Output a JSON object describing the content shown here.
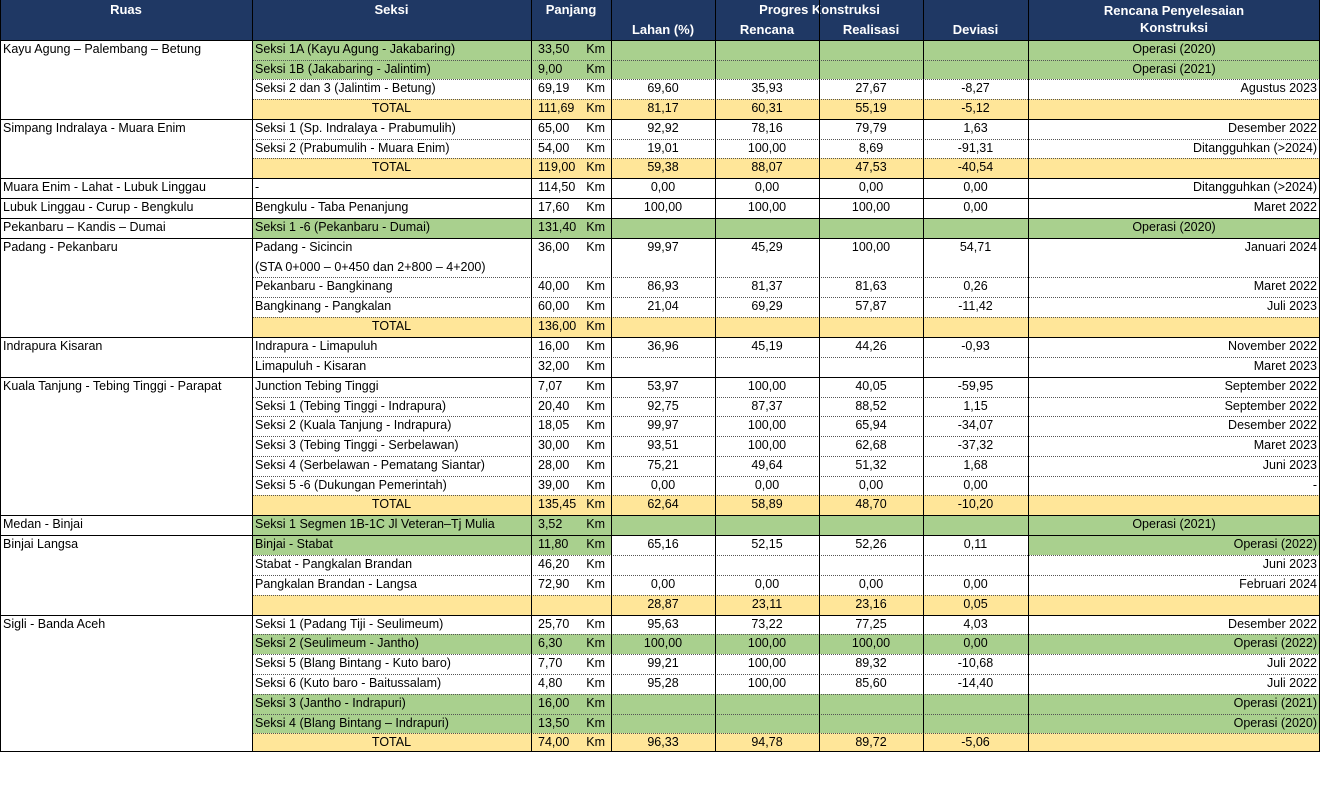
{
  "header": {
    "ruas": "Ruas",
    "seksi": "Seksi",
    "panjang": "Panjang",
    "progres": "Progres Konstruksi",
    "lahan": "Lahan (%)",
    "rencana": "Rencana",
    "realisasi": "Realisasi",
    "deviasi": "Deviasi",
    "penyelesaian_line1": "Rencana Penyelesaian",
    "penyelesaian_line2": "Konstruksi"
  },
  "unit": "Km",
  "groups": [
    {
      "ruas": "Kayu Agung – Palembang – Betung"
    },
    {
      "ruas": "Simpang Indralaya - Muara Enim"
    },
    {
      "ruas": "Muara Enim - Lahat - Lubuk Linggau"
    },
    {
      "ruas": "Lubuk Linggau - Curup - Bengkulu"
    },
    {
      "ruas": "Pekanbaru – Kandis – Dumai"
    },
    {
      "ruas": "Padang - Pekanbaru"
    },
    {
      "ruas": "Indrapura Kisaran"
    },
    {
      "ruas": "Kuala Tanjung - Tebing Tinggi - Parapat"
    },
    {
      "ruas": "Medan - Binjai"
    },
    {
      "ruas": "Binjai Langsa"
    },
    {
      "ruas": "Sigli - Banda Aceh"
    }
  ],
  "rows": [
    {
      "seksi": "Seksi 1A (Kayu Agung - Jakabaring)",
      "panjang": "33,50",
      "lahan": "",
      "rencana": "",
      "realisasi": "",
      "deviasi": "",
      "penyelesaian": "Operasi  (2020)",
      "fill": "green"
    },
    {
      "seksi": "Seksi 1B (Jakabaring - Jalintim)",
      "panjang": "9,00",
      "lahan": "",
      "rencana": "",
      "realisasi": "",
      "deviasi": "",
      "penyelesaian": "Operasi  (2021)",
      "fill": "green"
    },
    {
      "seksi": "Seksi 2 dan 3 (Jalintim - Betung)",
      "panjang": "69,19",
      "lahan": "69,60",
      "rencana": "35,93",
      "realisasi": "27,67",
      "deviasi": "-8,27",
      "penyelesaian": "Agustus 2023",
      "fill": "white"
    },
    {
      "seksi": "TOTAL",
      "panjang": "111,69",
      "lahan": "81,17",
      "rencana": "60,31",
      "realisasi": "55,19",
      "deviasi": "-5,12",
      "penyelesaian": "",
      "fill": "yellow"
    },
    {
      "seksi": "Seksi 1 (Sp. Indralaya - Prabumulih)",
      "panjang": "65,00",
      "lahan": "92,92",
      "rencana": "78,16",
      "realisasi": "79,79",
      "deviasi": "1,63",
      "penyelesaian": "Desember 2022",
      "fill": "white"
    },
    {
      "seksi": "Seksi 2 (Prabumulih - Muara Enim)",
      "panjang": "54,00",
      "lahan": "19,01",
      "rencana": "100,00",
      "realisasi": "8,69",
      "deviasi": "-91,31",
      "penyelesaian": "Ditangguhkan (>2024)",
      "fill": "white"
    },
    {
      "seksi": "TOTAL",
      "panjang": "119,00",
      "lahan": "59,38",
      "rencana": "88,07",
      "realisasi": "47,53",
      "deviasi": "-40,54",
      "penyelesaian": "",
      "fill": "yellow"
    },
    {
      "seksi": "-",
      "panjang": "114,50",
      "lahan": "0,00",
      "rencana": "0,00",
      "realisasi": "0,00",
      "deviasi": "0,00",
      "penyelesaian": "Ditangguhkan (>2024)",
      "fill": "white"
    },
    {
      "seksi": "Bengkulu - Taba Penanjung",
      "panjang": "17,60",
      "lahan": "100,00",
      "rencana": "100,00",
      "realisasi": "100,00",
      "deviasi": "0,00",
      "penyelesaian": "Maret 2022",
      "fill": "white"
    },
    {
      "seksi": "Seksi 1 -6 (Pekanbaru - Dumai)",
      "panjang": "131,40",
      "lahan": "",
      "rencana": "",
      "realisasi": "",
      "deviasi": "",
      "penyelesaian": "Operasi  (2020)",
      "fill": "green"
    },
    {
      "seksi": "Padang - Sicincin",
      "seksi2": "(STA 0+000 – 0+450 dan 2+800 – 4+200)",
      "panjang": "36,00",
      "lahan": "99,97",
      "rencana": "45,29",
      "realisasi": "100,00",
      "deviasi": "54,71",
      "penyelesaian": "Januari 2024",
      "fill": "white"
    },
    {
      "seksi": "Pekanbaru - Bangkinang",
      "panjang": "40,00",
      "lahan": "86,93",
      "rencana": "81,37",
      "realisasi": "81,63",
      "deviasi": "0,26",
      "penyelesaian": "Maret 2022",
      "fill": "white"
    },
    {
      "seksi": "Bangkinang - Pangkalan",
      "panjang": "60,00",
      "lahan": "21,04",
      "rencana": "69,29",
      "realisasi": "57,87",
      "deviasi": "-11,42",
      "penyelesaian": "Juli 2023",
      "fill": "white"
    },
    {
      "seksi": "TOTAL",
      "panjang": "136,00",
      "lahan": "",
      "rencana": "",
      "realisasi": "",
      "deviasi": "",
      "penyelesaian": "",
      "fill": "yellow"
    },
    {
      "seksi": "Indrapura - Limapuluh",
      "panjang": "16,00",
      "lahan": "36,96",
      "rencana": "45,19",
      "realisasi": "44,26",
      "deviasi": "-0,93",
      "penyelesaian": "November 2022",
      "fill": "white"
    },
    {
      "seksi": "Limapuluh - Kisaran",
      "panjang": "32,00",
      "lahan": "",
      "rencana": "",
      "realisasi": "",
      "deviasi": "",
      "penyelesaian": "Maret 2023",
      "fill": "white"
    },
    {
      "seksi": "Junction Tebing Tinggi",
      "panjang": "7,07",
      "lahan": "53,97",
      "rencana": "100,00",
      "realisasi": "40,05",
      "deviasi": "-59,95",
      "penyelesaian": "September 2022",
      "fill": "white"
    },
    {
      "seksi": "Seksi 1 (Tebing Tinggi - Indrapura)",
      "panjang": "20,40",
      "lahan": "92,75",
      "rencana": "87,37",
      "realisasi": "88,52",
      "deviasi": "1,15",
      "penyelesaian": "September 2022",
      "fill": "white"
    },
    {
      "seksi": "Seksi 2 (Kuala Tanjung - Indrapura)",
      "panjang": "18,05",
      "lahan": "99,97",
      "rencana": "100,00",
      "realisasi": "65,94",
      "deviasi": "-34,07",
      "penyelesaian": "Desember 2022",
      "fill": "white"
    },
    {
      "seksi": "Seksi 3 (Tebing Tinggi - Serbelawan)",
      "panjang": "30,00",
      "lahan": "93,51",
      "rencana": "100,00",
      "realisasi": "62,68",
      "deviasi": "-37,32",
      "penyelesaian": "Maret 2023",
      "fill": "white"
    },
    {
      "seksi": "Seksi 4 (Serbelawan - Pematang Siantar)",
      "panjang": "28,00",
      "lahan": "75,21",
      "rencana": "49,64",
      "realisasi": "51,32",
      "deviasi": "1,68",
      "penyelesaian": "Juni 2023",
      "fill": "white"
    },
    {
      "seksi": "Seksi 5 -6 (Dukungan Pemerintah)",
      "panjang": "39,00",
      "lahan": "0,00",
      "rencana": "0,00",
      "realisasi": "0,00",
      "deviasi": "0,00",
      "penyelesaian": "-",
      "fill": "white"
    },
    {
      "seksi": "TOTAL",
      "panjang": "135,45",
      "lahan": "62,64",
      "rencana": "58,89",
      "realisasi": "48,70",
      "deviasi": "-10,20",
      "penyelesaian": "",
      "fill": "yellow"
    },
    {
      "seksi": "Seksi 1 Segmen 1B-1C Jl Veteran–Tj Mulia",
      "panjang": "3,52",
      "lahan": "",
      "rencana": "",
      "realisasi": "",
      "deviasi": "",
      "penyelesaian": "Operasi (2021)",
      "fill": "green"
    },
    {
      "seksi": "Binjai - Stabat",
      "panjang": "11,80",
      "lahan": "65,16",
      "rencana": "52,15",
      "realisasi": "52,26",
      "deviasi": "0,11",
      "penyelesaian": "Operasi (2022)",
      "fill": "white"
    },
    {
      "seksi": "Stabat - Pangkalan Brandan",
      "panjang": "46,20",
      "lahan": "",
      "rencana": "",
      "realisasi": "",
      "deviasi": "",
      "penyelesaian": "Juni 2023",
      "fill": "white"
    },
    {
      "seksi": "Pangkalan Brandan - Langsa",
      "panjang": "72,90",
      "lahan": "0,00",
      "rencana": "0,00",
      "realisasi": "0,00",
      "deviasi": "0,00",
      "penyelesaian": "Februari 2024",
      "fill": "white"
    },
    {
      "seksi": "",
      "panjang": "",
      "lahan": "28,87",
      "rencana": "23,11",
      "realisasi": "23,16",
      "deviasi": "0,05",
      "penyelesaian": "",
      "fill": "yellow"
    },
    {
      "seksi": "Seksi 1 (Padang Tiji - Seulimeum)",
      "panjang": "25,70",
      "lahan": "95,63",
      "rencana": "73,22",
      "realisasi": "77,25",
      "deviasi": "4,03",
      "penyelesaian": "Desember 2022",
      "fill": "white"
    },
    {
      "seksi": "Seksi 2 (Seulimeum - Jantho)",
      "panjang": "6,30",
      "lahan": "100,00",
      "rencana": "100,00",
      "realisasi": "100,00",
      "deviasi": "0,00",
      "penyelesaian": "Operasi (2022)",
      "fill": "green"
    },
    {
      "seksi": "Seksi 5 (Blang Bintang - Kuto baro)",
      "panjang": "7,70",
      "lahan": "99,21",
      "rencana": "100,00",
      "realisasi": "89,32",
      "deviasi": "-10,68",
      "penyelesaian": "Juli 2022",
      "fill": "white"
    },
    {
      "seksi": "Seksi 6 (Kuto baro - Baitussalam)",
      "panjang": "4,80",
      "lahan": "95,28",
      "rencana": "100,00",
      "realisasi": "85,60",
      "deviasi": "-14,40",
      "penyelesaian": "Juli 2022",
      "fill": "white"
    },
    {
      "seksi": "Seksi 3 (Jantho - Indrapuri)",
      "panjang": "16,00",
      "lahan": "",
      "rencana": "",
      "realisasi": "",
      "deviasi": "",
      "penyelesaian": "Operasi (2021)",
      "fill": "green"
    },
    {
      "seksi": "Seksi 4 (Blang Bintang – Indrapuri)",
      "panjang": "13,50",
      "lahan": "",
      "rencana": "",
      "realisasi": "",
      "deviasi": "",
      "penyelesaian": "Operasi (2020)",
      "fill": "green"
    },
    {
      "seksi": "TOTAL",
      "panjang": "74,00",
      "lahan": "96,33",
      "rencana": "94,78",
      "realisasi": "89,72",
      "deviasi": "-5,06",
      "penyelesaian": "",
      "fill": "yellow"
    }
  ]
}
